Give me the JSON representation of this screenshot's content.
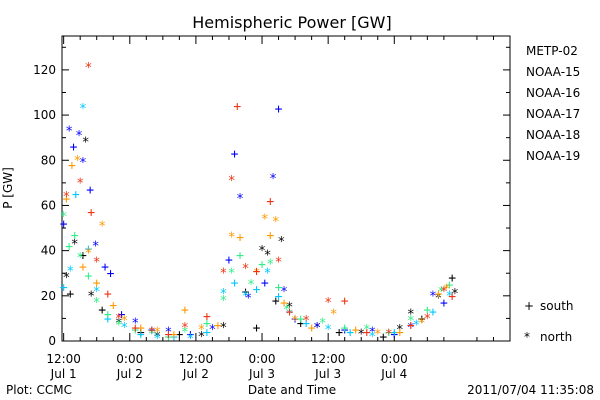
{
  "chart_data": {
    "type": "scatter",
    "title": "Hemispheric Power [GW]",
    "xlabel": "Date and Time",
    "ylabel": "P [GW]",
    "ylim": [
      0,
      135
    ],
    "xlim": [
      -0.3,
      81
    ],
    "y_ticks": [
      0,
      20,
      40,
      60,
      80,
      100,
      120
    ],
    "x_ticks": [
      {
        "x": 0,
        "time": "12:00",
        "date": "Jul 1"
      },
      {
        "x": 12,
        "time": "0:00",
        "date": "Jul 2"
      },
      {
        "x": 24,
        "time": "12:00",
        "date": "Jul 2"
      },
      {
        "x": 36,
        "time": "0:00",
        "date": "Jul 3"
      },
      {
        "x": 48,
        "time": "12:00",
        "date": "Jul 3"
      },
      {
        "x": 60,
        "time": "0:00",
        "date": "Jul 4"
      }
    ],
    "x_unit": "hours since 2011-07-01 12:00",
    "grid": false,
    "legend_position": "right",
    "symbol_legend": [
      {
        "symbol": "+",
        "label": "south"
      },
      {
        "symbol": "*",
        "label": "north"
      }
    ],
    "series": [
      {
        "name": "METP-02",
        "color": "#000000",
        "points": [
          {
            "x": 0.5,
            "y": 28,
            "m": "*"
          },
          {
            "x": 1.2,
            "y": 21,
            "m": "+"
          },
          {
            "x": 2,
            "y": 43,
            "m": "*"
          },
          {
            "x": 3.5,
            "y": 38,
            "m": "+"
          },
          {
            "x": 4,
            "y": 88,
            "m": "*"
          },
          {
            "x": 5,
            "y": 20,
            "m": "*"
          },
          {
            "x": 7,
            "y": 14,
            "m": "+"
          },
          {
            "x": 10,
            "y": 8,
            "m": "*"
          },
          {
            "x": 14,
            "y": 4,
            "m": "+"
          },
          {
            "x": 17,
            "y": 2,
            "m": "*"
          },
          {
            "x": 21,
            "y": 3,
            "m": "+"
          },
          {
            "x": 25,
            "y": 2,
            "m": "*"
          },
          {
            "x": 29,
            "y": 6,
            "m": "*"
          },
          {
            "x": 33,
            "y": 22,
            "m": "+"
          },
          {
            "x": 35,
            "y": 6,
            "m": "+"
          },
          {
            "x": 36,
            "y": 40,
            "m": "*"
          },
          {
            "x": 37,
            "y": 38,
            "m": "*"
          },
          {
            "x": 38.5,
            "y": 18,
            "m": "+"
          },
          {
            "x": 39.5,
            "y": 44,
            "m": "*"
          },
          {
            "x": 41,
            "y": 15,
            "m": "*"
          },
          {
            "x": 43,
            "y": 8,
            "m": "+"
          },
          {
            "x": 46,
            "y": 6,
            "m": "*"
          },
          {
            "x": 50,
            "y": 4,
            "m": "+"
          },
          {
            "x": 54,
            "y": 3,
            "m": "*"
          },
          {
            "x": 58,
            "y": 2,
            "m": "+"
          },
          {
            "x": 61,
            "y": 5,
            "m": "*"
          },
          {
            "x": 63,
            "y": 12,
            "m": "*"
          },
          {
            "x": 65,
            "y": 10,
            "m": "+"
          },
          {
            "x": 68,
            "y": 19,
            "m": "*"
          },
          {
            "x": 70.5,
            "y": 28,
            "m": "+"
          },
          {
            "x": 71,
            "y": 21,
            "m": "*"
          }
        ]
      },
      {
        "name": "NOAA-15",
        "color": "#0000ff",
        "points": [
          {
            "x": 0,
            "y": 52,
            "m": "+"
          },
          {
            "x": 1,
            "y": 93,
            "m": "*"
          },
          {
            "x": 1.8,
            "y": 86,
            "m": "+"
          },
          {
            "x": 2.8,
            "y": 91,
            "m": "*"
          },
          {
            "x": 3.5,
            "y": 79,
            "m": "*"
          },
          {
            "x": 4.8,
            "y": 67,
            "m": "+"
          },
          {
            "x": 5.8,
            "y": 42,
            "m": "*"
          },
          {
            "x": 7.5,
            "y": 33,
            "m": "+"
          },
          {
            "x": 8.5,
            "y": 30,
            "m": "+"
          },
          {
            "x": 10.5,
            "y": 12,
            "m": "+"
          },
          {
            "x": 13,
            "y": 8,
            "m": "*"
          },
          {
            "x": 16,
            "y": 5,
            "m": "+"
          },
          {
            "x": 19,
            "y": 4,
            "m": "*"
          },
          {
            "x": 23,
            "y": 3,
            "m": "+"
          },
          {
            "x": 27,
            "y": 5,
            "m": "*"
          },
          {
            "x": 30,
            "y": 36,
            "m": "+"
          },
          {
            "x": 31,
            "y": 83,
            "m": "+"
          },
          {
            "x": 32,
            "y": 63,
            "m": "*"
          },
          {
            "x": 33.5,
            "y": 19,
            "m": "*"
          },
          {
            "x": 36.5,
            "y": 26,
            "m": "+"
          },
          {
            "x": 38,
            "y": 72,
            "m": "*"
          },
          {
            "x": 39,
            "y": 103,
            "m": "+"
          },
          {
            "x": 40,
            "y": 22,
            "m": "*"
          },
          {
            "x": 42,
            "y": 10,
            "m": "+"
          },
          {
            "x": 46,
            "y": 6,
            "m": "*"
          },
          {
            "x": 51,
            "y": 5,
            "m": "+"
          },
          {
            "x": 56,
            "y": 4,
            "m": "*"
          },
          {
            "x": 60,
            "y": 3,
            "m": "+"
          },
          {
            "x": 63,
            "y": 6,
            "m": "*"
          },
          {
            "x": 67,
            "y": 20,
            "m": "*"
          },
          {
            "x": 69,
            "y": 17,
            "m": "+"
          }
        ]
      },
      {
        "name": "NOAA-16",
        "color": "#00c8ff",
        "points": [
          {
            "x": 0,
            "y": 24,
            "m": "+"
          },
          {
            "x": 1.2,
            "y": 31,
            "m": "*"
          },
          {
            "x": 2.2,
            "y": 65,
            "m": "+"
          },
          {
            "x": 3.5,
            "y": 103,
            "m": "*"
          },
          {
            "x": 4.5,
            "y": 41,
            "m": "+"
          },
          {
            "x": 6,
            "y": 22,
            "m": "*"
          },
          {
            "x": 8,
            "y": 10,
            "m": "+"
          },
          {
            "x": 11,
            "y": 6,
            "m": "*"
          },
          {
            "x": 14,
            "y": 3,
            "m": "+"
          },
          {
            "x": 17,
            "y": 1,
            "m": "*"
          },
          {
            "x": 20,
            "y": 2,
            "m": "+"
          },
          {
            "x": 23,
            "y": 1,
            "m": "*"
          },
          {
            "x": 26,
            "y": 4,
            "m": "+"
          },
          {
            "x": 29,
            "y": 21,
            "m": "*"
          },
          {
            "x": 31,
            "y": 26,
            "m": "+"
          },
          {
            "x": 33,
            "y": 20,
            "m": "*"
          },
          {
            "x": 35,
            "y": 23,
            "m": "+"
          },
          {
            "x": 37,
            "y": 30,
            "m": "*"
          },
          {
            "x": 39,
            "y": 20,
            "m": "+"
          },
          {
            "x": 41,
            "y": 12,
            "m": "*"
          },
          {
            "x": 44,
            "y": 8,
            "m": "+"
          },
          {
            "x": 48,
            "y": 5,
            "m": "*"
          },
          {
            "x": 52,
            "y": 4,
            "m": "+"
          },
          {
            "x": 56,
            "y": 2,
            "m": "*"
          },
          {
            "x": 60,
            "y": 4,
            "m": "+"
          },
          {
            "x": 64,
            "y": 7,
            "m": "*"
          },
          {
            "x": 67,
            "y": 13,
            "m": "+"
          },
          {
            "x": 70,
            "y": 20,
            "m": "*"
          }
        ]
      },
      {
        "name": "NOAA-17",
        "color": "#33ee88",
        "points": [
          {
            "x": 0,
            "y": 55,
            "m": "*"
          },
          {
            "x": 1,
            "y": 42,
            "m": "+"
          },
          {
            "x": 2,
            "y": 47,
            "m": "+"
          },
          {
            "x": 3,
            "y": 37,
            "m": "*"
          },
          {
            "x": 4.5,
            "y": 29,
            "m": "+"
          },
          {
            "x": 6,
            "y": 17,
            "m": "*"
          },
          {
            "x": 8,
            "y": 12,
            "m": "+"
          },
          {
            "x": 10,
            "y": 7,
            "m": "*"
          },
          {
            "x": 13,
            "y": 5,
            "m": "+"
          },
          {
            "x": 16,
            "y": 3,
            "m": "*"
          },
          {
            "x": 19,
            "y": 2,
            "m": "+"
          },
          {
            "x": 22,
            "y": 4,
            "m": "*"
          },
          {
            "x": 26,
            "y": 8,
            "m": "+"
          },
          {
            "x": 29,
            "y": 18,
            "m": "*"
          },
          {
            "x": 30.5,
            "y": 30,
            "m": "*"
          },
          {
            "x": 32,
            "y": 38,
            "m": "+"
          },
          {
            "x": 34,
            "y": 25,
            "m": "*"
          },
          {
            "x": 36,
            "y": 34,
            "m": "+"
          },
          {
            "x": 37.5,
            "y": 34,
            "m": "*"
          },
          {
            "x": 39,
            "y": 24,
            "m": "+"
          },
          {
            "x": 40.5,
            "y": 14,
            "m": "*"
          },
          {
            "x": 43,
            "y": 10,
            "m": "+"
          },
          {
            "x": 47,
            "y": 8,
            "m": "*"
          },
          {
            "x": 51,
            "y": 6,
            "m": "+"
          },
          {
            "x": 55,
            "y": 5,
            "m": "*"
          },
          {
            "x": 59,
            "y": 4,
            "m": "+"
          },
          {
            "x": 63,
            "y": 9,
            "m": "*"
          },
          {
            "x": 66,
            "y": 14,
            "m": "+"
          },
          {
            "x": 68.5,
            "y": 22,
            "m": "*"
          },
          {
            "x": 70,
            "y": 25,
            "m": "+"
          }
        ]
      },
      {
        "name": "NOAA-18",
        "color": "#ff9900",
        "points": [
          {
            "x": 0.5,
            "y": 63,
            "m": "+"
          },
          {
            "x": 1.5,
            "y": 78,
            "m": "+"
          },
          {
            "x": 2.5,
            "y": 80,
            "m": "*"
          },
          {
            "x": 3.5,
            "y": 33,
            "m": "+"
          },
          {
            "x": 4.5,
            "y": 39,
            "m": "*"
          },
          {
            "x": 6,
            "y": 26,
            "m": "+"
          },
          {
            "x": 7,
            "y": 51,
            "m": "*"
          },
          {
            "x": 9,
            "y": 16,
            "m": "+"
          },
          {
            "x": 11,
            "y": 9,
            "m": "*"
          },
          {
            "x": 14,
            "y": 6,
            "m": "+"
          },
          {
            "x": 17,
            "y": 4,
            "m": "*"
          },
          {
            "x": 20,
            "y": 3,
            "m": "+"
          },
          {
            "x": 22,
            "y": 14,
            "m": "+"
          },
          {
            "x": 25,
            "y": 5,
            "m": "*"
          },
          {
            "x": 28,
            "y": 7,
            "m": "+"
          },
          {
            "x": 30.5,
            "y": 46,
            "m": "*"
          },
          {
            "x": 32,
            "y": 46,
            "m": "+"
          },
          {
            "x": 35,
            "y": 30,
            "m": "*"
          },
          {
            "x": 36.5,
            "y": 54,
            "m": "*"
          },
          {
            "x": 37.5,
            "y": 47,
            "m": "+"
          },
          {
            "x": 38.5,
            "y": 53,
            "m": "*"
          },
          {
            "x": 40,
            "y": 17,
            "m": "+"
          },
          {
            "x": 42,
            "y": 9,
            "m": "*"
          },
          {
            "x": 45,
            "y": 6,
            "m": "+"
          },
          {
            "x": 49,
            "y": 12,
            "m": "*"
          },
          {
            "x": 53,
            "y": 5,
            "m": "+"
          },
          {
            "x": 57,
            "y": 3,
            "m": "*"
          },
          {
            "x": 61,
            "y": 4,
            "m": "+"
          },
          {
            "x": 65,
            "y": 8,
            "m": "*"
          },
          {
            "x": 68,
            "y": 21,
            "m": "+"
          },
          {
            "x": 69.5,
            "y": 23,
            "m": "*"
          }
        ]
      },
      {
        "name": "NOAA-19",
        "color": "#ee3311",
        "points": [
          {
            "x": 0.5,
            "y": 64,
            "m": "*"
          },
          {
            "x": 3,
            "y": 70,
            "m": "*"
          },
          {
            "x": 4.5,
            "y": 121,
            "m": "*"
          },
          {
            "x": 5,
            "y": 57,
            "m": "+"
          },
          {
            "x": 6,
            "y": 35,
            "m": "*"
          },
          {
            "x": 8,
            "y": 21,
            "m": "+"
          },
          {
            "x": 10,
            "y": 10,
            "m": "*"
          },
          {
            "x": 13,
            "y": 6,
            "m": "+"
          },
          {
            "x": 16,
            "y": 4,
            "m": "*"
          },
          {
            "x": 19,
            "y": 3,
            "m": "+"
          },
          {
            "x": 22,
            "y": 6,
            "m": "*"
          },
          {
            "x": 26,
            "y": 11,
            "m": "+"
          },
          {
            "x": 29,
            "y": 30,
            "m": "*"
          },
          {
            "x": 30.5,
            "y": 71,
            "m": "*"
          },
          {
            "x": 31.5,
            "y": 104,
            "m": "+"
          },
          {
            "x": 33,
            "y": 32,
            "m": "*"
          },
          {
            "x": 35,
            "y": 31,
            "m": "+"
          },
          {
            "x": 37.5,
            "y": 62,
            "m": "+"
          },
          {
            "x": 39,
            "y": 35,
            "m": "*"
          },
          {
            "x": 41,
            "y": 13,
            "m": "+"
          },
          {
            "x": 44,
            "y": 9,
            "m": "*"
          },
          {
            "x": 48,
            "y": 17,
            "m": "*"
          },
          {
            "x": 51,
            "y": 18,
            "m": "+"
          },
          {
            "x": 55,
            "y": 4,
            "m": "+"
          },
          {
            "x": 59,
            "y": 3,
            "m": "*"
          },
          {
            "x": 63,
            "y": 7,
            "m": "+"
          },
          {
            "x": 66,
            "y": 10,
            "m": "*"
          },
          {
            "x": 69,
            "y": 22,
            "m": "*"
          },
          {
            "x": 70.5,
            "y": 20,
            "m": "+"
          }
        ]
      }
    ]
  },
  "footer": {
    "plot_credit": "Plot: CCMC",
    "timestamp": "2011/07/04 11:35:08"
  },
  "colors": {
    "background": "#ffffff",
    "axis": "#000000"
  }
}
